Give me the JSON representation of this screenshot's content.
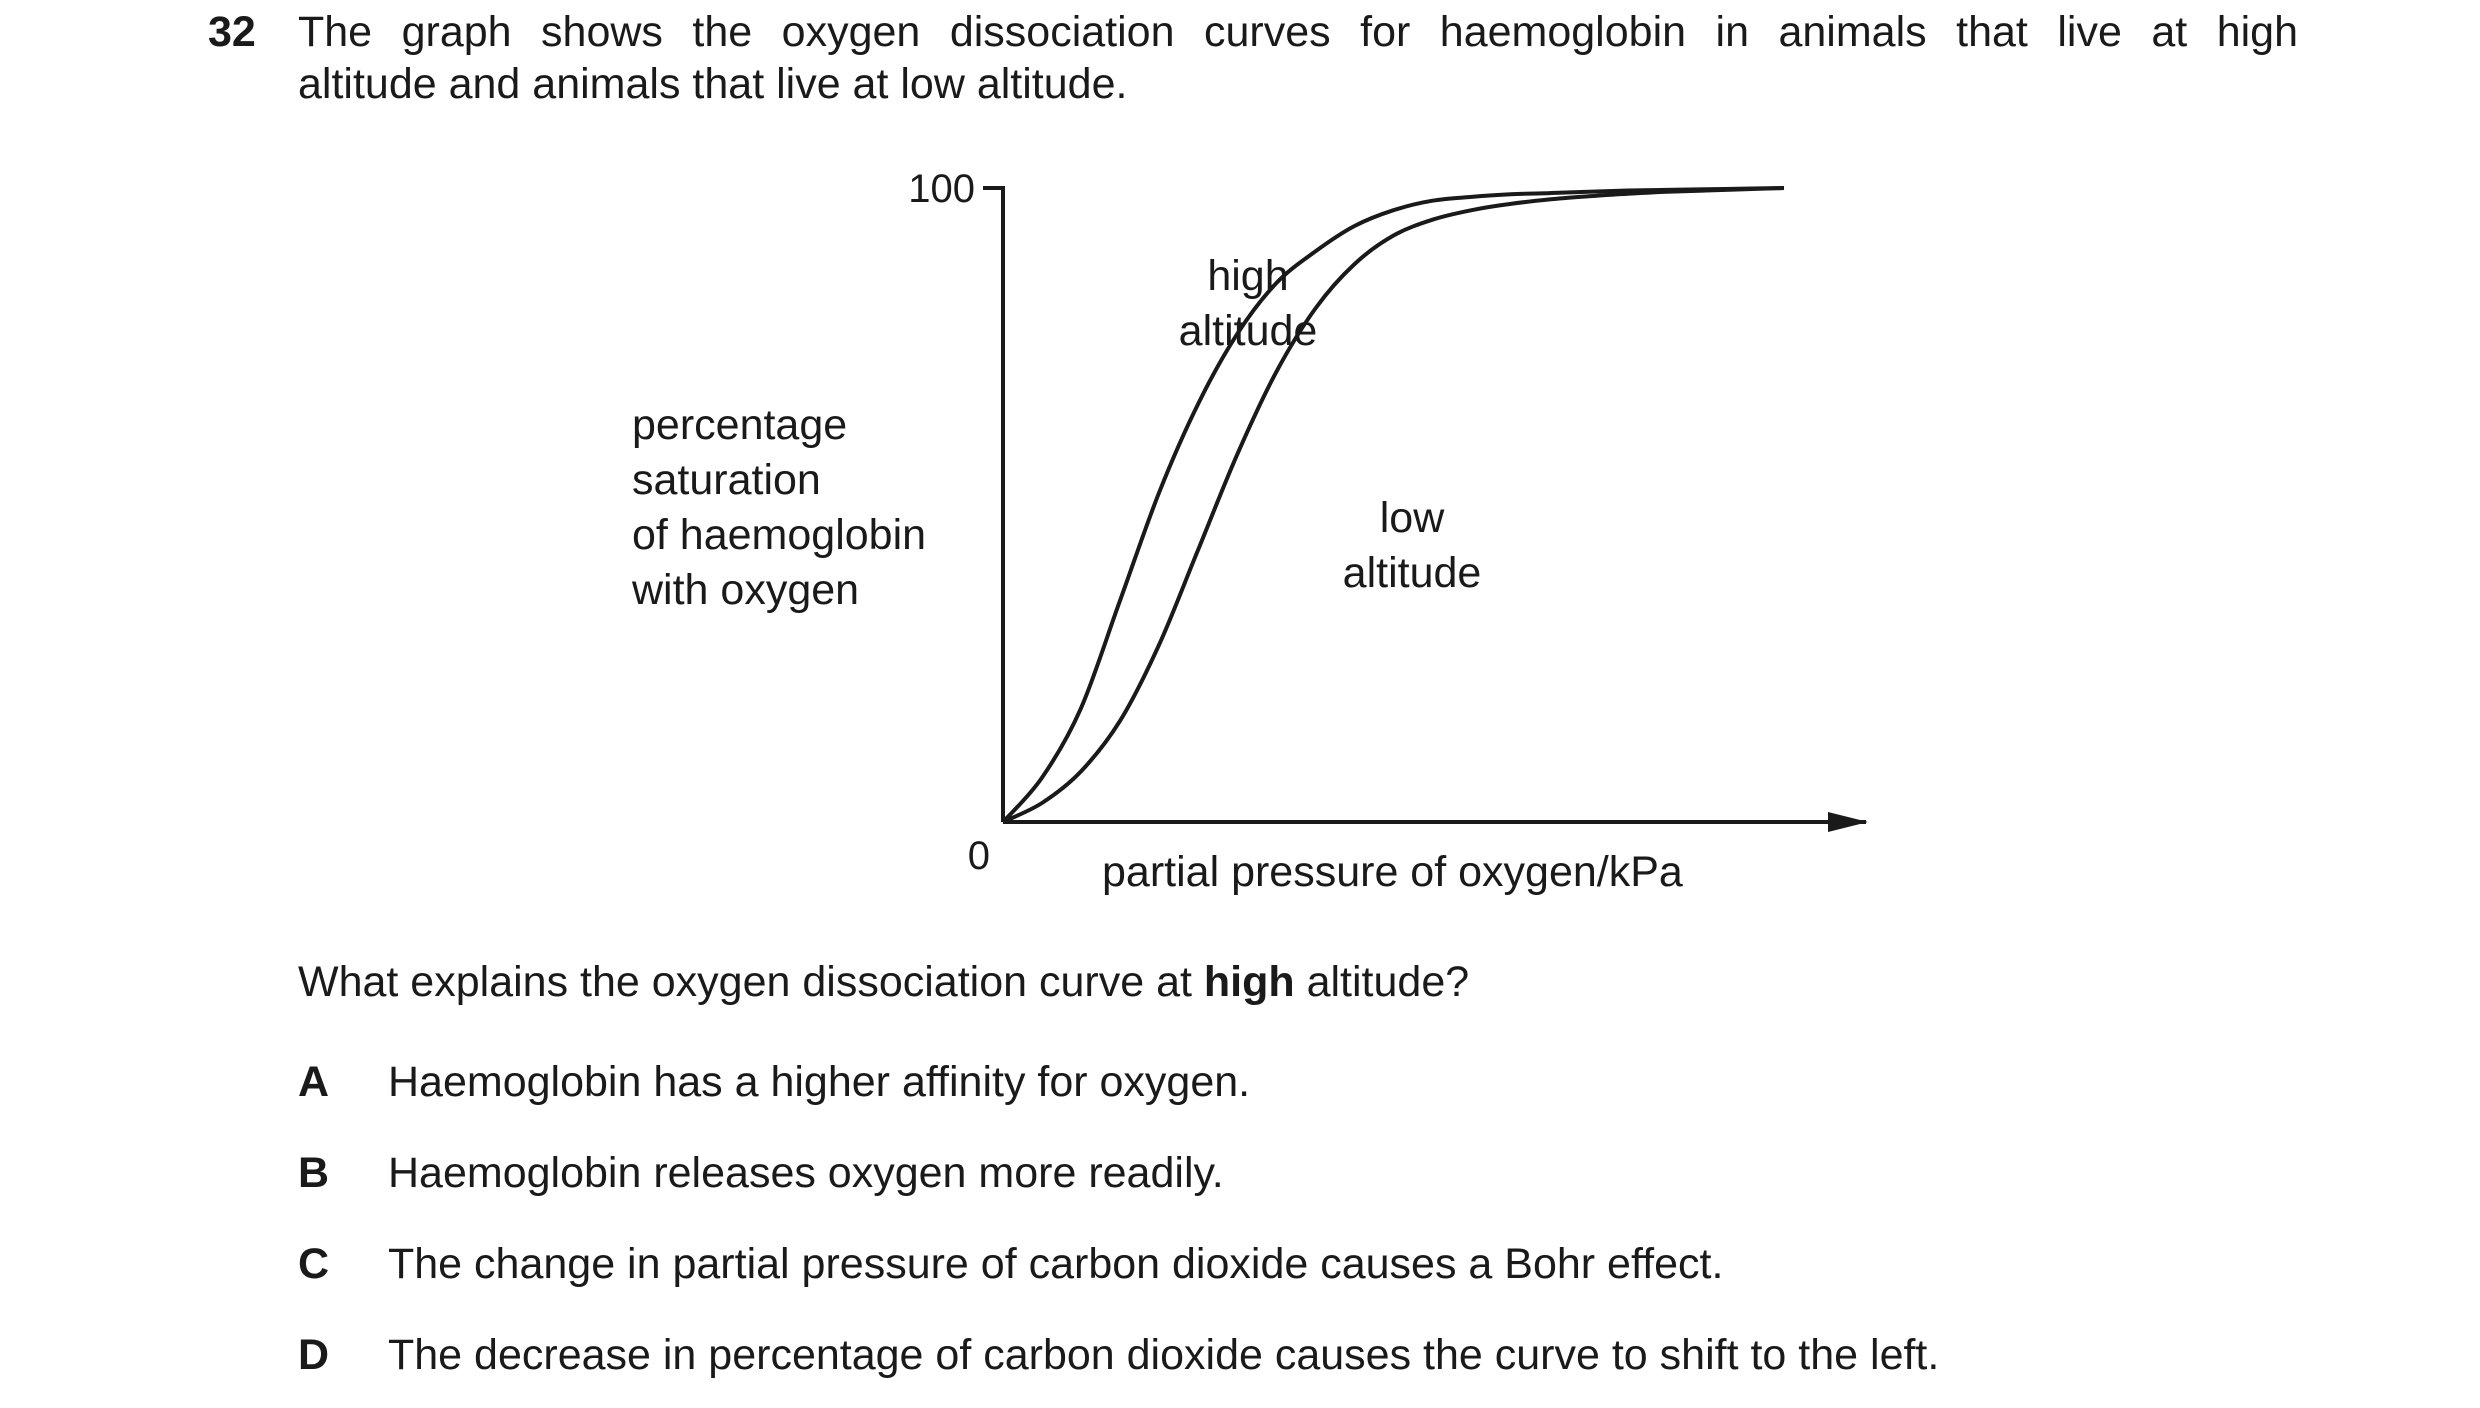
{
  "question": {
    "number": "32",
    "stem_line1": "The graph shows the oxygen dissociation curves for haemoglobin in animals that live at high",
    "stem_line2": "altitude and animals that live at low altitude.",
    "prompt_before": "What explains the oxygen dissociation curve at ",
    "prompt_bold": "high",
    "prompt_after": " altitude?"
  },
  "options": [
    {
      "letter": "A",
      "text": "Haemoglobin has a higher affinity for oxygen."
    },
    {
      "letter": "B",
      "text": "Haemoglobin releases oxygen more readily."
    },
    {
      "letter": "C",
      "text": "The change in partial pressure of carbon dioxide causes a Bohr effect."
    },
    {
      "letter": "D",
      "text": "The decrease in percentage of carbon dioxide causes the curve to shift to the left."
    }
  ],
  "chart_data": {
    "type": "line",
    "title": "",
    "xlabel": "partial pressure of oxygen / kPa",
    "ylabel_lines": [
      "percentage",
      "saturation",
      "of haemoglobin",
      "with oxygen"
    ],
    "x_ticks_shown": [
      "0"
    ],
    "y_ticks": [
      "100"
    ],
    "x_unlabelled_relative_range": [
      0,
      1
    ],
    "ylim": [
      0,
      100
    ],
    "grid": false,
    "line_color": "#1a1a1a",
    "series": [
      {
        "name_lines": [
          "high",
          "altitude"
        ],
        "x_relative": [
          0,
          0.05,
          0.1,
          0.15,
          0.2,
          0.25,
          0.3,
          0.35,
          0.4,
          0.45,
          0.5,
          0.55,
          0.6,
          0.65,
          0.7,
          0.75,
          0.8,
          0.85,
          0.9,
          0.95,
          1.0
        ],
        "y": [
          0,
          7,
          18,
          35,
          52,
          66,
          77,
          85,
          90,
          94,
          96.5,
          98,
          98.6,
          99,
          99.2,
          99.4,
          99.6,
          99.7,
          99.8,
          99.9,
          100
        ]
      },
      {
        "name_lines": [
          "low",
          "altitude"
        ],
        "x_relative": [
          0,
          0.05,
          0.1,
          0.15,
          0.2,
          0.25,
          0.3,
          0.35,
          0.4,
          0.45,
          0.5,
          0.55,
          0.6,
          0.65,
          0.7,
          0.75,
          0.8,
          0.85,
          0.9,
          0.95,
          1.0
        ],
        "y": [
          0,
          3,
          8,
          16,
          28,
          43,
          58,
          71,
          81,
          88,
          92.5,
          95,
          96.5,
          97.5,
          98.2,
          98.7,
          99.1,
          99.4,
          99.6,
          99.8,
          100
        ]
      }
    ]
  }
}
